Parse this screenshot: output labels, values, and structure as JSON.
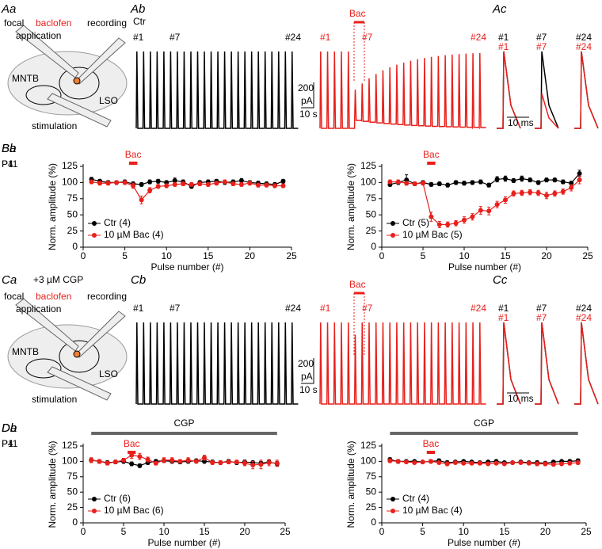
{
  "schematic": {
    "focal": "focal",
    "baclofen": "baclofen",
    "application": "application",
    "recording": "recording",
    "mntb": "MNTB",
    "lso": "LSO",
    "stimulation": "stimulation"
  },
  "row_a": {
    "labels": [
      "Aa",
      "Ab",
      "Ac"
    ],
    "ctr": "Ctr",
    "pulses": [
      "#1",
      "#7",
      "#24"
    ],
    "drug": "Bac",
    "scale": [
      "200",
      "pA",
      "10 s"
    ],
    "time_scale": "10 ms"
  },
  "row_c": {
    "labels": [
      "Ca",
      "Cb",
      "Cc"
    ],
    "condition": "+3 µM CGP",
    "pulses": [
      "#1",
      "#7",
      "#24"
    ],
    "drug": "Bac",
    "scale": [
      "200",
      "pA",
      "10 s"
    ],
    "time_scale": "10 ms"
  },
  "chart_data": [
    {
      "type": "line",
      "panel": "Ba",
      "age": "P4",
      "xlabel": "Pulse number (#)",
      "ylabel": "Norm. amplitude (%)",
      "drug_label": "Bac",
      "drug_bar": [
        5.5,
        6.5
      ],
      "legend": "lower left",
      "x": [
        1,
        2,
        3,
        4,
        5,
        6,
        7,
        8,
        9,
        10,
        11,
        12,
        13,
        14,
        15,
        16,
        17,
        18,
        19,
        20,
        21,
        22,
        23,
        24
      ],
      "xlim": [
        0,
        25
      ],
      "ylim": [
        0,
        125
      ],
      "xticks": [
        0,
        5,
        10,
        15,
        20,
        25
      ],
      "yticks": [
        0,
        25,
        50,
        75,
        100,
        125
      ],
      "series": [
        {
          "name": "Ctr (4)",
          "color": "#000000",
          "values": [
            105,
            102,
            100,
            100,
            101,
            98,
            97,
            101,
            102,
            100,
            103,
            101,
            94,
            100,
            101,
            102,
            100,
            101,
            103,
            100,
            99,
            98,
            97,
            102
          ],
          "errors": [
            3,
            3,
            3,
            3,
            3,
            3,
            3,
            3,
            3,
            3,
            4,
            3,
            3,
            3,
            3,
            3,
            3,
            3,
            3,
            3,
            3,
            3,
            3,
            3
          ]
        },
        {
          "name": "10 µM Bac (4)",
          "color": "#e8201c",
          "values": [
            101,
            99,
            99,
            100,
            100,
            95,
            73,
            88,
            94,
            95,
            97,
            98,
            97,
            98,
            97,
            99,
            101,
            98,
            97,
            99,
            96,
            96,
            95,
            95
          ],
          "errors": [
            3,
            3,
            3,
            3,
            3,
            4,
            6,
            4,
            3,
            3,
            3,
            3,
            3,
            3,
            3,
            3,
            3,
            3,
            3,
            3,
            3,
            3,
            3,
            3
          ]
        }
      ]
    },
    {
      "type": "line",
      "panel": "Bb",
      "age": "P11",
      "xlabel": "Pulse number (#)",
      "ylabel": "Norm. amplitude (%)",
      "drug_label": "Bac",
      "drug_bar": [
        5.5,
        6.5
      ],
      "legend": "lower left",
      "x": [
        1,
        2,
        3,
        4,
        5,
        6,
        7,
        8,
        9,
        10,
        11,
        12,
        13,
        14,
        15,
        16,
        17,
        18,
        19,
        20,
        21,
        22,
        23,
        24
      ],
      "xlim": [
        0,
        25
      ],
      "ylim": [
        0,
        125
      ],
      "xticks": [
        0,
        5,
        10,
        15,
        20,
        25
      ],
      "yticks": [
        0,
        25,
        50,
        75,
        100,
        125
      ],
      "series": [
        {
          "name": "Ctr (5)",
          "color": "#000000",
          "values": [
            97,
            100,
            104,
            98,
            100,
            97,
            98,
            96,
            100,
            99,
            100,
            101,
            96,
            105,
            106,
            103,
            106,
            104,
            100,
            104,
            104,
            101,
            99,
            114
          ],
          "errors": [
            3,
            3,
            8,
            3,
            3,
            3,
            3,
            3,
            3,
            3,
            3,
            3,
            3,
            4,
            4,
            3,
            4,
            3,
            3,
            3,
            3,
            3,
            3,
            5
          ]
        },
        {
          "name": "10 µM Bac (5)",
          "color": "#e8201c",
          "values": [
            101,
            101,
            99,
            98,
            99,
            47,
            35,
            35,
            37,
            42,
            47,
            57,
            56,
            66,
            73,
            83,
            84,
            85,
            84,
            80,
            83,
            86,
            92,
            104
          ],
          "errors": [
            3,
            3,
            3,
            3,
            3,
            7,
            5,
            4,
            4,
            5,
            5,
            6,
            6,
            5,
            5,
            4,
            4,
            4,
            4,
            5,
            4,
            4,
            5,
            6
          ]
        }
      ]
    },
    {
      "type": "line",
      "panel": "Da",
      "age": "P4",
      "xlabel": "Pulse number (#)",
      "ylabel": "Norm. amplitude (%)",
      "drug_label": "Bac",
      "drug_bar": [
        5.5,
        6.5
      ],
      "cgp_label": "CGP",
      "cgp_bar": [
        1,
        24
      ],
      "legend": "lower left",
      "x": [
        1,
        2,
        3,
        4,
        5,
        6,
        7,
        8,
        9,
        10,
        11,
        12,
        13,
        14,
        15,
        16,
        17,
        18,
        19,
        20,
        21,
        22,
        23,
        24
      ],
      "xlim": [
        0,
        25
      ],
      "ylim": [
        0,
        125
      ],
      "xticks": [
        0,
        5,
        10,
        15,
        20,
        25
      ],
      "yticks": [
        0,
        25,
        50,
        75,
        100,
        125
      ],
      "series": [
        {
          "name": "Ctr (6)",
          "color": "#000000",
          "values": [
            102,
            100,
            98,
            99,
            100,
            96,
            93,
            98,
            100,
            101,
            100,
            99,
            100,
            101,
            100,
            99,
            98,
            100,
            98,
            99,
            98,
            97,
            99,
            96
          ],
          "errors": [
            3,
            3,
            3,
            3,
            3,
            3,
            3,
            3,
            3,
            3,
            3,
            3,
            3,
            3,
            3,
            3,
            3,
            3,
            3,
            3,
            3,
            3,
            3,
            4
          ]
        },
        {
          "name": "10 µM Bac (6)",
          "color": "#e8201c",
          "values": [
            102,
            100,
            97,
            99,
            102,
            110,
            108,
            103,
            97,
            102,
            102,
            100,
            102,
            100,
            106,
            98,
            98,
            99,
            99,
            97,
            94,
            95,
            98,
            97
          ],
          "errors": [
            4,
            3,
            3,
            3,
            3,
            5,
            5,
            4,
            3,
            4,
            4,
            3,
            4,
            3,
            4,
            3,
            3,
            3,
            3,
            4,
            6,
            7,
            5,
            5
          ]
        }
      ]
    },
    {
      "type": "line",
      "panel": "Db",
      "age": "P11",
      "xlabel": "Pulse number (#)",
      "ylabel": "Norm. amplitude (%)",
      "drug_label": "Bac",
      "drug_bar": [
        5.5,
        6.5
      ],
      "cgp_label": "CGP",
      "cgp_bar": [
        1,
        24
      ],
      "legend": "lower left",
      "x": [
        1,
        2,
        3,
        4,
        5,
        6,
        7,
        8,
        9,
        10,
        11,
        12,
        13,
        14,
        15,
        16,
        17,
        18,
        19,
        20,
        21,
        22,
        23,
        24
      ],
      "xlim": [
        0,
        25
      ],
      "ylim": [
        0,
        125
      ],
      "xticks": [
        0,
        5,
        10,
        15,
        20,
        25
      ],
      "yticks": [
        0,
        25,
        50,
        75,
        100,
        125
      ],
      "series": [
        {
          "name": "Ctr (4)",
          "color": "#000000",
          "values": [
            103,
            100,
            100,
            100,
            99,
            100,
            101,
            98,
            99,
            100,
            99,
            98,
            99,
            100,
            98,
            98,
            99,
            98,
            98,
            97,
            99,
            100,
            100,
            101
          ],
          "errors": [
            3,
            3,
            2,
            2,
            2,
            2,
            3,
            3,
            2,
            2,
            2,
            2,
            2,
            2,
            2,
            2,
            2,
            2,
            3,
            3,
            2,
            2,
            3,
            3
          ]
        },
        {
          "name": "10 µM Bac (4)",
          "color": "#e8201c",
          "values": [
            101,
            100,
            99,
            98,
            99,
            100,
            98,
            96,
            98,
            97,
            97,
            97,
            96,
            97,
            96,
            98,
            98,
            97,
            96,
            96,
            95,
            96,
            97,
            98
          ],
          "errors": [
            3,
            2,
            2,
            2,
            2,
            3,
            2,
            3,
            2,
            2,
            2,
            2,
            2,
            2,
            2,
            2,
            2,
            2,
            3,
            3,
            2,
            2,
            3,
            3
          ]
        }
      ]
    }
  ]
}
